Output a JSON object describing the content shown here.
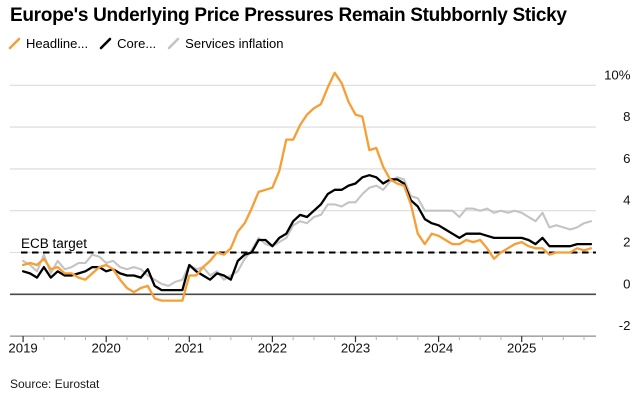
{
  "source_note": "Source: Eurostat",
  "chart_data": {
    "type": "line",
    "title": "Europe's Underlying Price Pressures Remain Stubbornly Sticky",
    "x_start": "2019-01",
    "x_end": "2025-11",
    "x_interval": "monthly",
    "x_tick_labels": [
      "2019",
      "2020",
      "2021",
      "2022",
      "2023",
      "2024",
      "2025"
    ],
    "y_axis": {
      "ticks": [
        {
          "value": 10,
          "label": "10%"
        },
        {
          "value": 8,
          "label": "8"
        },
        {
          "value": 6,
          "label": "6"
        },
        {
          "value": 4,
          "label": "4"
        },
        {
          "value": 2,
          "label": "2"
        },
        {
          "value": 0,
          "label": "0"
        },
        {
          "value": -2,
          "label": "-2"
        }
      ],
      "range": [
        -2.7,
        11.3
      ]
    },
    "grid": true,
    "legend_position": "top-left",
    "annotation": {
      "label": "ECB target",
      "value": 2,
      "style": "dashed-black"
    },
    "colors": {
      "gridline": "#dbdbdb",
      "zero_line": "#4a4a4a",
      "axis_line": "#8c8c8c",
      "major_tick": "#333333",
      "minor_tick": "#b3b3b3",
      "target_line": "#000000",
      "text": "#111111"
    },
    "series": [
      {
        "label": "Headline...",
        "color": "#F79E35",
        "values": [
          1.4,
          1.5,
          1.4,
          1.7,
          1.2,
          1.3,
          1.0,
          1.0,
          0.8,
          0.7,
          1.0,
          1.3,
          1.4,
          1.2,
          0.7,
          0.3,
          0.1,
          0.3,
          0.4,
          -0.2,
          -0.3,
          -0.3,
          -0.3,
          -0.3,
          0.9,
          0.9,
          1.3,
          1.6,
          2.0,
          1.9,
          2.2,
          3.0,
          3.4,
          4.1,
          4.9,
          5.0,
          5.1,
          5.9,
          7.4,
          7.4,
          8.1,
          8.6,
          8.9,
          9.1,
          9.9,
          10.6,
          10.1,
          9.2,
          8.6,
          8.5,
          6.9,
          7.0,
          6.1,
          5.5,
          5.3,
          5.2,
          4.3,
          2.9,
          2.4,
          2.9,
          2.8,
          2.6,
          2.4,
          2.4,
          2.6,
          2.5,
          2.6,
          2.2,
          1.7,
          2.0,
          2.2,
          2.4,
          2.5,
          2.3,
          2.2,
          2.2,
          1.9,
          2.0,
          2.0,
          2.0,
          2.2,
          2.1,
          2.2
        ]
      },
      {
        "label": "Core...",
        "color": "#000000",
        "values": [
          1.1,
          1.0,
          0.8,
          1.3,
          0.8,
          1.1,
          0.9,
          0.9,
          1.0,
          1.1,
          1.3,
          1.3,
          1.1,
          1.2,
          1.0,
          0.9,
          0.9,
          0.8,
          1.2,
          0.4,
          0.2,
          0.2,
          0.2,
          0.2,
          1.4,
          1.1,
          0.9,
          0.7,
          1.0,
          0.9,
          0.7,
          1.6,
          1.9,
          2.0,
          2.6,
          2.6,
          2.3,
          2.7,
          2.9,
          3.5,
          3.8,
          3.7,
          4.0,
          4.3,
          4.8,
          5.0,
          5.0,
          5.2,
          5.3,
          5.6,
          5.7,
          5.6,
          5.3,
          5.5,
          5.5,
          5.3,
          4.5,
          4.2,
          3.6,
          3.4,
          3.3,
          3.1,
          2.9,
          2.7,
          2.9,
          2.9,
          2.9,
          2.8,
          2.7,
          2.7,
          2.7,
          2.7,
          2.7,
          2.6,
          2.4,
          2.7,
          2.3,
          2.3,
          2.3,
          2.3,
          2.4,
          2.4,
          2.4
        ]
      },
      {
        "label": "Services inflation",
        "color": "#C4C4C4",
        "values": [
          1.6,
          1.4,
          1.1,
          1.9,
          1.0,
          1.6,
          1.2,
          1.3,
          1.5,
          1.5,
          1.9,
          1.8,
          1.5,
          1.6,
          1.3,
          1.2,
          1.3,
          1.2,
          0.9,
          0.7,
          0.5,
          0.4,
          0.6,
          0.7,
          1.4,
          1.2,
          1.3,
          0.9,
          1.1,
          0.7,
          0.9,
          1.1,
          1.7,
          2.1,
          2.7,
          2.4,
          2.3,
          2.5,
          2.7,
          3.3,
          3.5,
          3.4,
          3.7,
          3.8,
          4.3,
          4.3,
          4.2,
          4.4,
          4.4,
          4.8,
          5.1,
          5.2,
          5.0,
          5.4,
          5.6,
          5.5,
          4.7,
          4.6,
          4.0,
          4.0,
          4.0,
          4.0,
          4.0,
          3.7,
          4.1,
          4.1,
          4.0,
          4.1,
          3.9,
          4.0,
          3.9,
          4.0,
          3.9,
          3.7,
          3.5,
          3.9,
          3.2,
          3.3,
          3.2,
          3.1,
          3.2,
          3.4,
          3.5
        ]
      }
    ]
  }
}
